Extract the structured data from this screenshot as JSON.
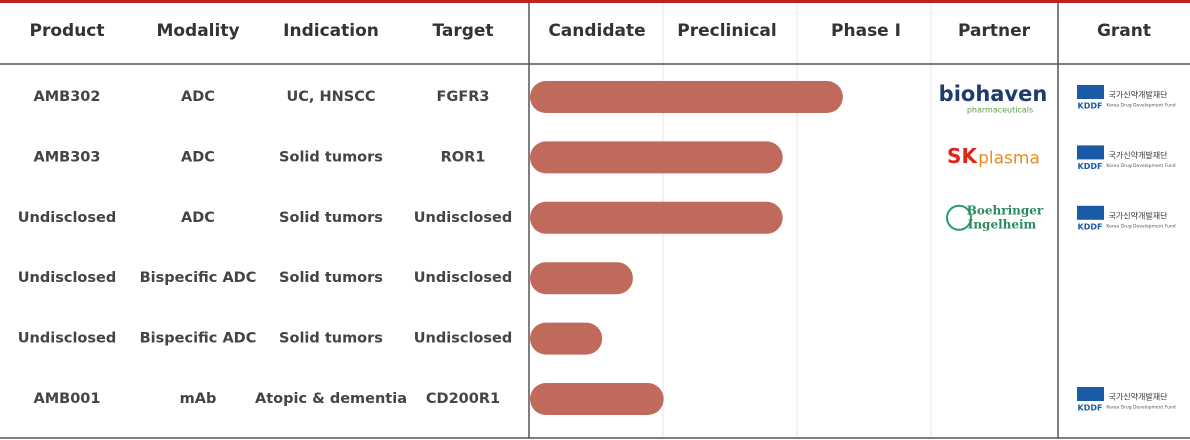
{
  "header": {
    "columns": [
      "Product",
      "Modality",
      "Indication",
      "Target",
      "Candidate",
      "Preclinical",
      "Phase I",
      "Partner",
      "Grant"
    ]
  },
  "rows": [
    {
      "product": "AMB302",
      "modality": "ADC",
      "indication": "UC, HNSCC",
      "target": "FGFR3",
      "progress": 2.34,
      "partner": {
        "name": "biohaven",
        "sub": "pharmaceuticals"
      },
      "grant": {
        "abbr": "KDDF",
        "name_ko": "국가신약개발재단",
        "name_en": "Korea Drug Development Fund"
      }
    },
    {
      "product": "AMB303",
      "modality": "ADC",
      "indication": "Solid tumors",
      "target": "ROR1",
      "progress": 1.89,
      "partner": {
        "name": "SK",
        "sub": "plasma"
      },
      "grant": {
        "abbr": "KDDF",
        "name_ko": "국가신약개발재단",
        "name_en": "Korea Drug Development Fund"
      }
    },
    {
      "product": "Undisclosed",
      "modality": "ADC",
      "indication": "Solid tumors",
      "target": "Undisclosed",
      "progress": 1.89,
      "partner": {
        "name": "Boehringer",
        "sub": "Ingelheim"
      },
      "grant": {
        "abbr": "KDDF",
        "name_ko": "국가신약개발재단",
        "name_en": "Korea Drug Development Fund"
      }
    },
    {
      "product": "Undisclosed",
      "modality": "Bispecific ADC",
      "indication": "Solid tumors",
      "target": "Undisclosed",
      "progress": 0.77
    },
    {
      "product": "Undisclosed",
      "modality": "Bispecific ADC",
      "indication": "Solid tumors",
      "target": "Undisclosed",
      "progress": 0.54
    },
    {
      "product": "AMB001",
      "modality": "mAb",
      "indication": "Atopic & dementia",
      "target": "CD200R1",
      "progress": 1.0,
      "grant": {
        "abbr": "KDDF",
        "name_ko": "국가신약개발재단",
        "name_en": "Korea Drug Development Fund"
      }
    }
  ]
}
